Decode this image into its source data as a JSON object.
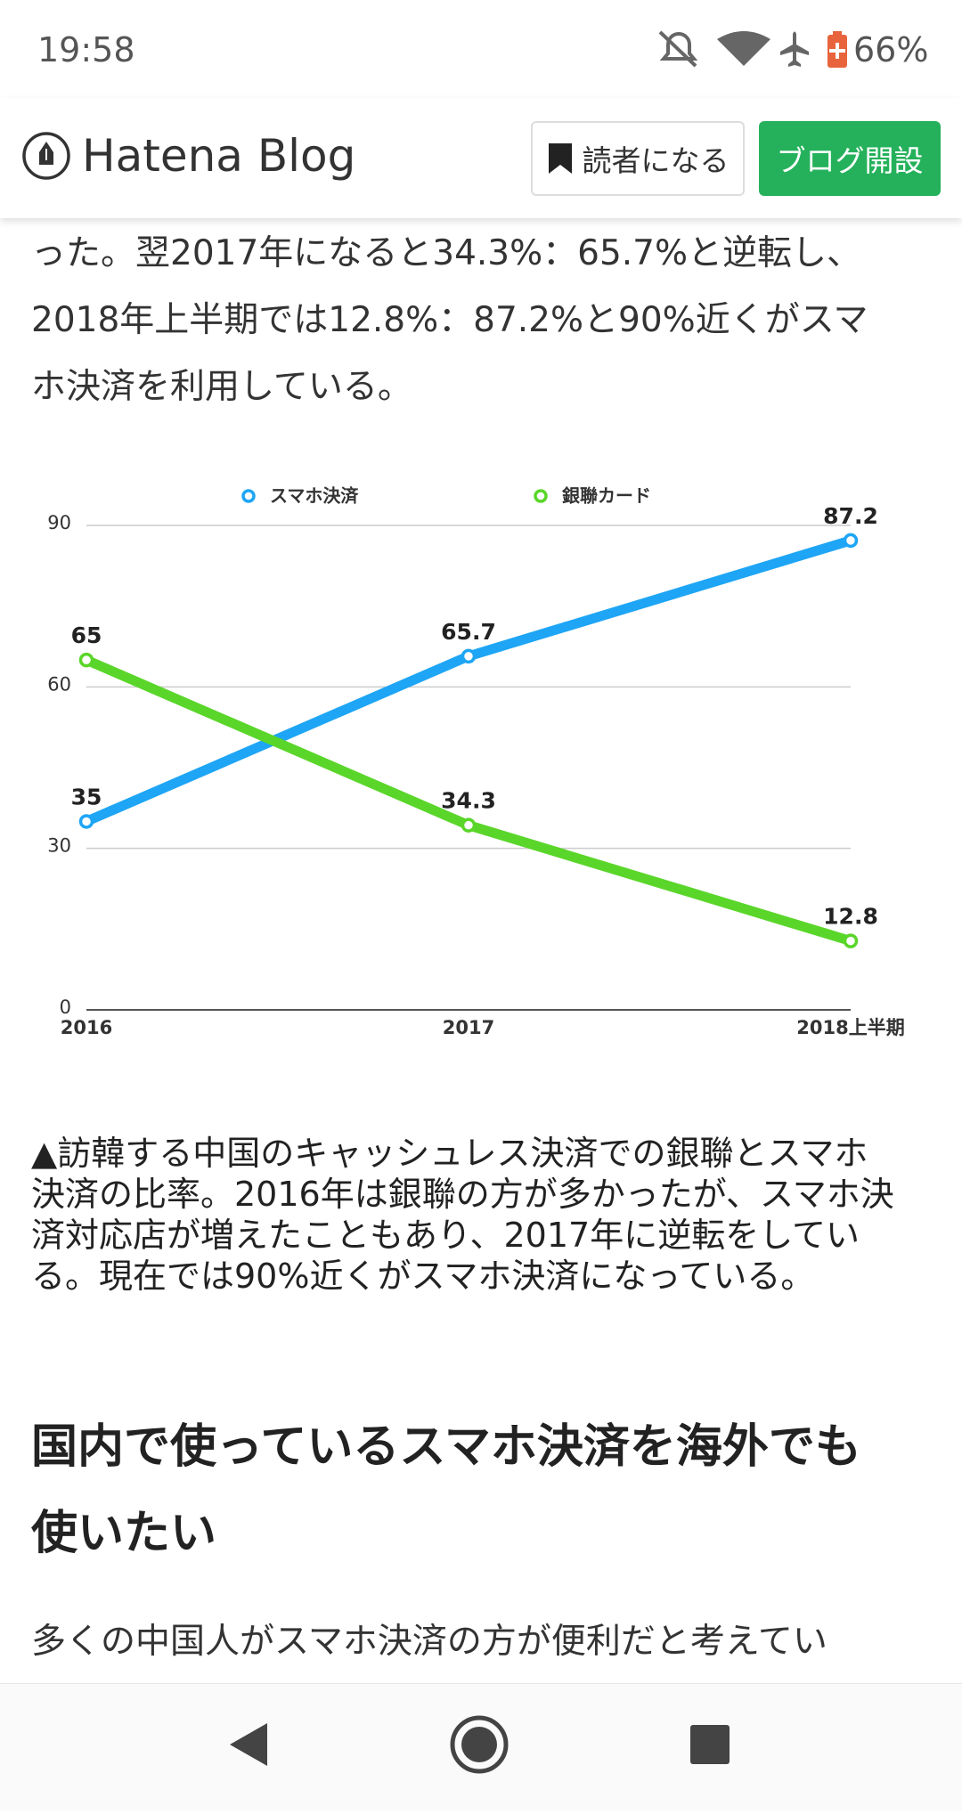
{
  "status_bar": {
    "time": "19:58",
    "battery": "66%"
  },
  "header": {
    "logo": "Hatena Blog",
    "subscribe_button": "読者になる",
    "start_blog_button": "ブログ開設"
  },
  "article": {
    "paragraph_1": [
      "った。翌2017年になると34.3%：65.7%と逆転し、",
      "2018年上半期では12.8%：87.2%と90%近くがスマ",
      "ホ決済を利用している。"
    ],
    "caption": [
      "▲訪韓する中国のキャッシュレス決済での銀聯とスマホ",
      "決済の比率。2016年は銀聯の方が多かったが、スマホ決",
      "済対応店が増えたこともあり、2017年に逆転をしてい",
      "る。現在では90%近くがスマホ決済になっている。"
    ],
    "heading": [
      "国内で使っているスマホ決済を海外でも",
      "使いたい"
    ],
    "paragraph_2": [
      "多くの中国人がスマホ決済の方が便利だと考えてい"
    ]
  },
  "chart_data": {
    "type": "line",
    "categories": [
      "2016",
      "2017",
      "2018上半期"
    ],
    "series": [
      {
        "name": "スマホ決済",
        "color": "#1ea5f5",
        "values": [
          35,
          65.7,
          87.2
        ]
      },
      {
        "name": "銀聯カード",
        "color": "#5ad62a",
        "values": [
          65,
          34.3,
          12.8
        ]
      }
    ],
    "ylim": [
      0,
      90
    ],
    "yticks": [
      0,
      30,
      60,
      90
    ],
    "grid": true,
    "legend": "top",
    "data_labels": true
  }
}
